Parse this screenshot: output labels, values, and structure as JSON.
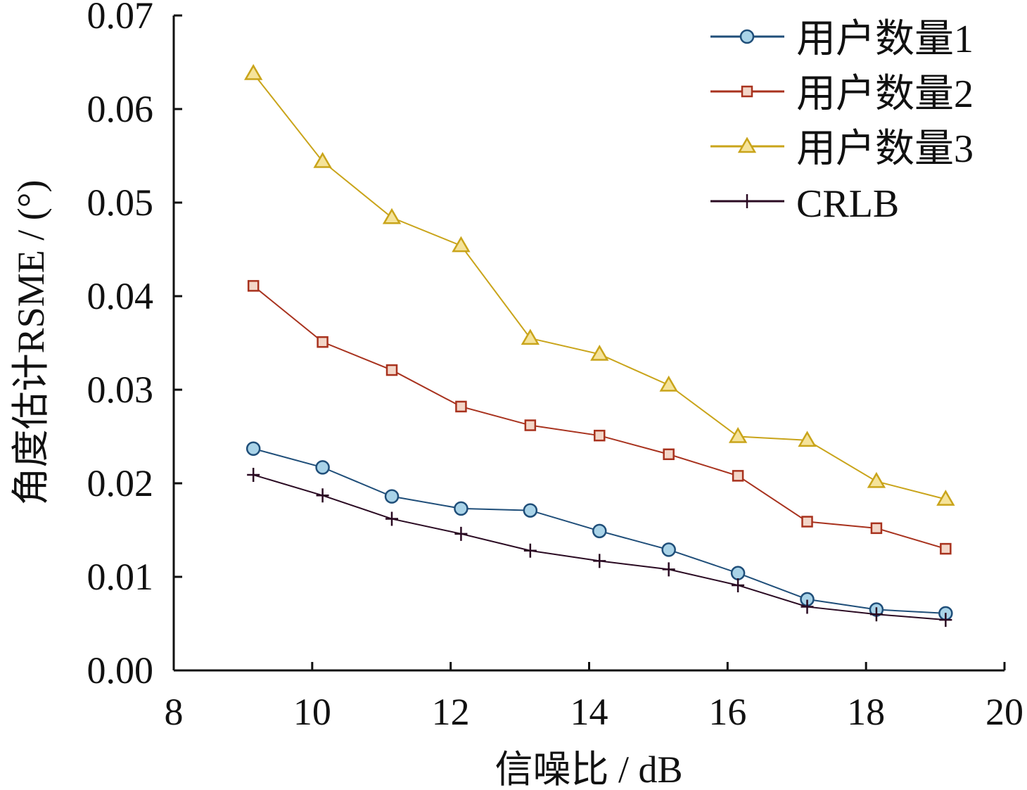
{
  "chart_data": {
    "type": "line",
    "title": "",
    "xlabel": "信噪比 / dB",
    "ylabel": "角度估计RSME / (°)",
    "xlim": [
      8,
      20
    ],
    "ylim": [
      0,
      0.07
    ],
    "xticks": [
      "8",
      "10",
      "12",
      "14",
      "16",
      "18",
      "20"
    ],
    "yticks": [
      "0.00",
      "0.01",
      "0.02",
      "0.03",
      "0.04",
      "0.05",
      "0.06",
      "0.07"
    ],
    "grid": false,
    "legend_position": "top-right",
    "x": [
      9.15,
      10.15,
      11.15,
      12.15,
      13.15,
      14.15,
      15.15,
      16.15,
      17.15,
      18.15,
      19.15
    ],
    "series": [
      {
        "name": "用户数量1",
        "marker": "circle",
        "color": "#1f4e79",
        "fill": "#a9d3e8",
        "values": [
          0.0237,
          0.0217,
          0.0186,
          0.0173,
          0.0171,
          0.0149,
          0.0129,
          0.0104,
          0.0076,
          0.0065,
          0.0061
        ]
      },
      {
        "name": "用户数量2",
        "marker": "square",
        "color": "#a8321e",
        "fill": "#f3d6c8",
        "values": [
          0.0411,
          0.0351,
          0.0321,
          0.0282,
          0.0262,
          0.0251,
          0.0231,
          0.0208,
          0.0159,
          0.0152,
          0.013
        ]
      },
      {
        "name": "用户数量3",
        "marker": "triangle",
        "color": "#c9a41a",
        "fill": "#f5e39a",
        "values": [
          0.0638,
          0.0544,
          0.0484,
          0.0454,
          0.0355,
          0.0338,
          0.0305,
          0.025,
          0.0246,
          0.0202,
          0.0183
        ]
      },
      {
        "name": "CRLB",
        "marker": "plus",
        "color": "#2a0a22",
        "fill": "none",
        "values": [
          0.0209,
          0.0187,
          0.0162,
          0.0146,
          0.0128,
          0.0117,
          0.0108,
          0.0091,
          0.0068,
          0.006,
          0.0054
        ]
      }
    ]
  }
}
